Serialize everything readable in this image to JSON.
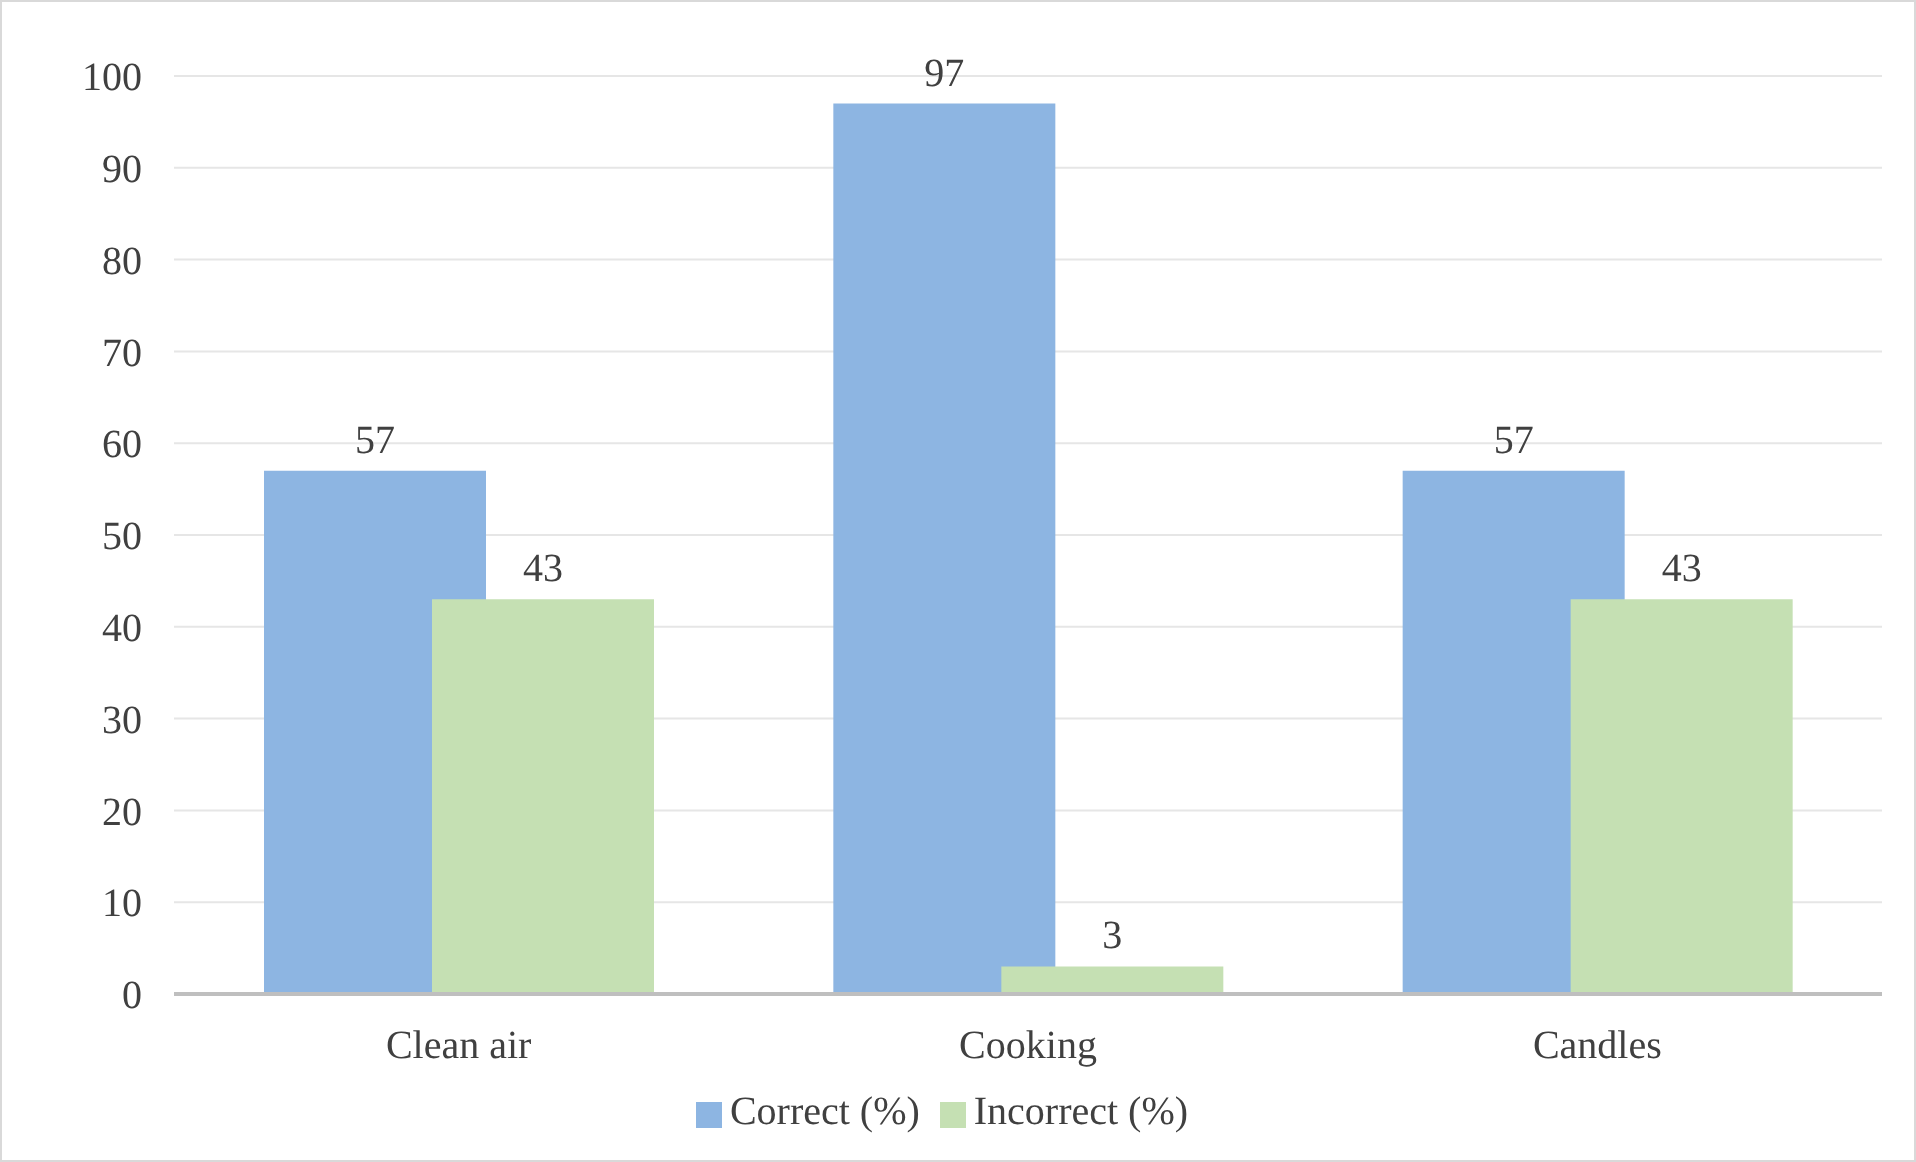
{
  "chart_data": {
    "type": "bar",
    "categories": [
      "Clean air",
      "Cooking",
      "Candles"
    ],
    "series": [
      {
        "name": "Correct (%)",
        "color": "#8db5e2",
        "values": [
          57,
          97,
          57
        ]
      },
      {
        "name": "Incorrect (%)",
        "color": "#c5e0b3",
        "values": [
          43,
          3,
          43
        ]
      }
    ],
    "ylim": [
      0,
      100
    ],
    "yticks": [
      0,
      10,
      20,
      30,
      40,
      50,
      60,
      70,
      80,
      90,
      100
    ],
    "grid": "y",
    "legend": "bottom",
    "data_labels": true
  }
}
